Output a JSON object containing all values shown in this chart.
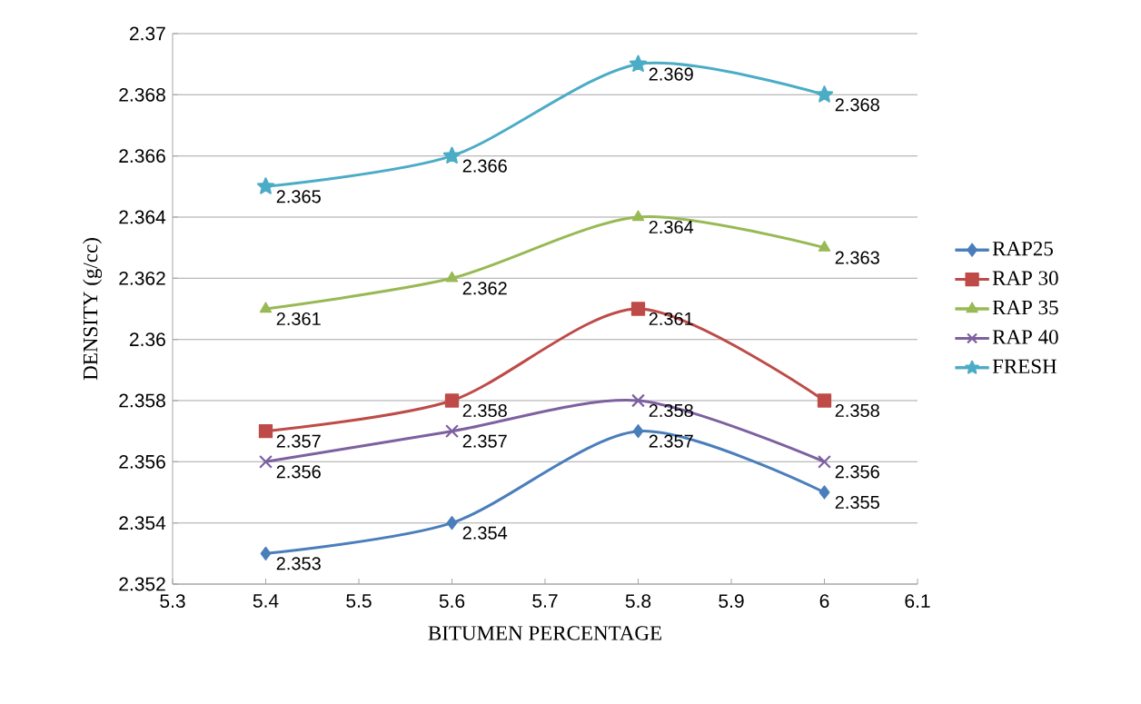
{
  "chart_data": {
    "type": "line",
    "xlabel": "BITUMEN PERCENTAGE",
    "ylabel": "DENSITY (g/cc)",
    "x": [
      5.4,
      5.6,
      5.8,
      6
    ],
    "series": [
      {
        "name": "RAP25",
        "color": "#4a7ebb",
        "marker": "diamond",
        "values": [
          2.353,
          2.354,
          2.357,
          2.355
        ]
      },
      {
        "name": "RAP 30",
        "color": "#be4b48",
        "marker": "square",
        "values": [
          2.357,
          2.358,
          2.361,
          2.358
        ]
      },
      {
        "name": "RAP 35",
        "color": "#98b954",
        "marker": "triangle",
        "values": [
          2.361,
          2.362,
          2.364,
          2.363
        ]
      },
      {
        "name": "RAP 40",
        "color": "#7d60a0",
        "marker": "cross",
        "values": [
          2.356,
          2.357,
          2.358,
          2.356
        ]
      },
      {
        "name": "FRESH",
        "color": "#4bacc6",
        "marker": "star",
        "values": [
          2.365,
          2.366,
          2.369,
          2.368
        ]
      }
    ],
    "xlim": [
      5.3,
      6.1
    ],
    "xticks": [
      5.3,
      5.4,
      5.5,
      5.6,
      5.7,
      5.8,
      5.9,
      6,
      6.1
    ],
    "ylim": [
      2.352,
      2.37
    ],
    "yticks": [
      2.352,
      2.354,
      2.356,
      2.358,
      2.36,
      2.362,
      2.364,
      2.366,
      2.368,
      2.37
    ],
    "grid": "y",
    "legend": "right",
    "data_labels": true,
    "line_style": "solid"
  }
}
